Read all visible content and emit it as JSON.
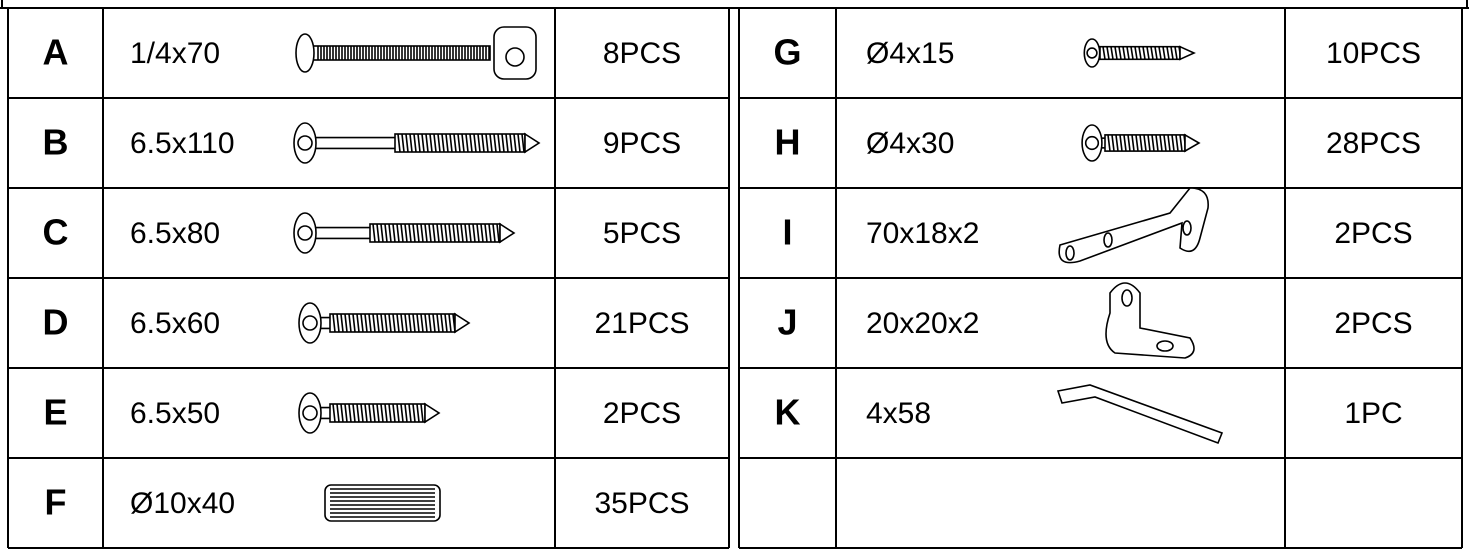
{
  "left_table": {
    "rows": [
      {
        "letter": "A",
        "size": "1/4x70",
        "qty": "8PCS"
      },
      {
        "letter": "B",
        "size": "6.5x110",
        "qty": "9PCS"
      },
      {
        "letter": "C",
        "size": "6.5x80",
        "qty": "5PCS"
      },
      {
        "letter": "D",
        "size": "6.5x60",
        "qty": "21PCS"
      },
      {
        "letter": "E",
        "size": "6.5x50",
        "qty": "2PCS"
      },
      {
        "letter": "F",
        "size": "Ø10x40",
        "qty": "35PCS"
      }
    ]
  },
  "right_table": {
    "rows": [
      {
        "letter": "G",
        "size": "Ø4x15",
        "qty": "10PCS"
      },
      {
        "letter": "H",
        "size": "Ø4x30",
        "qty": "28PCS"
      },
      {
        "letter": "I",
        "size": "70x18x2",
        "qty": "2PCS"
      },
      {
        "letter": "J",
        "size": "20x20x2",
        "qty": "2PCS"
      },
      {
        "letter": "K",
        "size": "4x58",
        "qty": "1PC"
      }
    ]
  }
}
